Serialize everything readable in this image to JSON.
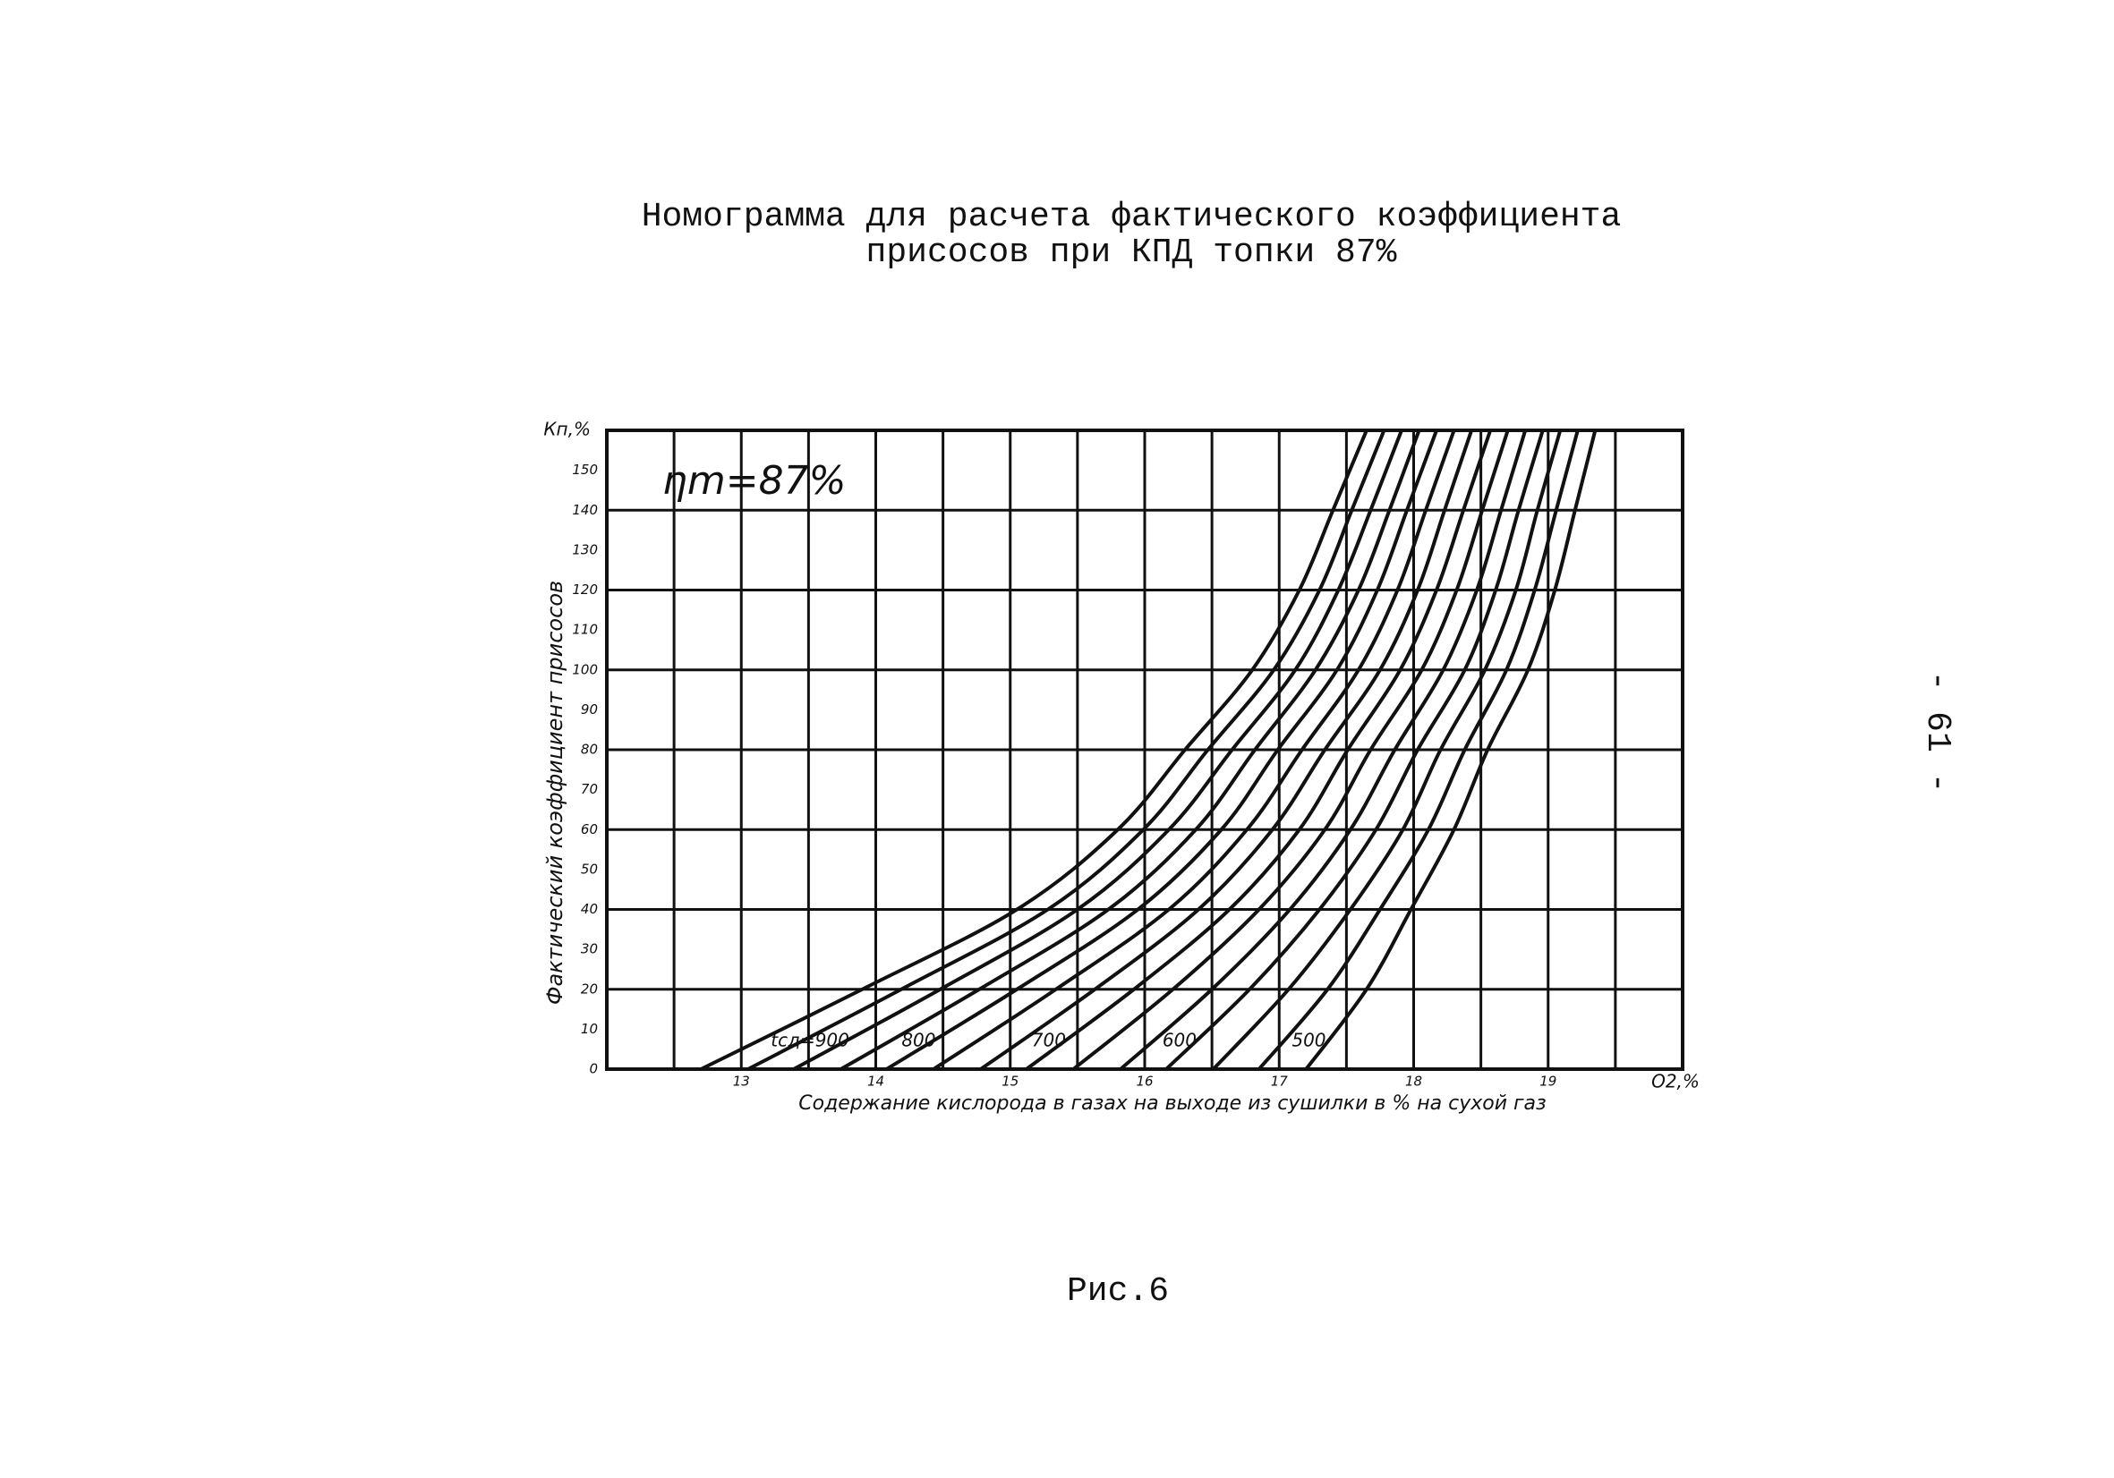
{
  "page": {
    "caption": "Рис.6",
    "page_number": "- 61 -"
  },
  "chart_data": {
    "type": "line",
    "title": [
      "Номограмма для расчета фактического коэффициента",
      "присосов при КПД топки 87%"
    ],
    "annotation": "ηm=87%",
    "x_label": "Содержание кислорода в газах на выходе из сушилки в % на сухой газ",
    "y_label": "Фактический коэффициент присосов",
    "x_unit_label": "O2,%",
    "y_unit_label": "Кп,%",
    "xlim": [
      12,
      20
    ],
    "xticks": [
      13,
      14,
      15,
      16,
      17,
      18,
      19
    ],
    "xgrid": [
      12.5,
      13,
      13.5,
      14,
      14.5,
      15,
      15.5,
      16,
      16.5,
      17,
      17.5,
      18,
      18.5,
      19,
      19.5
    ],
    "ylim": [
      0,
      160
    ],
    "yticks": [
      0,
      10,
      20,
      30,
      40,
      50,
      60,
      70,
      80,
      90,
      100,
      110,
      120,
      130,
      140,
      150
    ],
    "ygrid": [
      20,
      40,
      60,
      80,
      100,
      120,
      140
    ],
    "grid": true,
    "color": "#111111",
    "y": [
      0,
      20,
      40,
      60,
      80,
      100,
      120,
      140,
      160
    ],
    "series": [
      {
        "name": "tсд=900",
        "x": [
          12.7,
          13.9,
          15.05,
          15.8,
          16.3,
          16.8,
          17.15,
          17.4,
          17.65
        ]
      },
      {
        "x": [
          13.05,
          14.19,
          15.28,
          15.99,
          16.47,
          16.96,
          17.3,
          17.54,
          17.78
        ]
      },
      {
        "x": [
          13.39,
          14.48,
          15.5,
          16.18,
          16.65,
          17.12,
          17.44,
          17.68,
          17.91
        ]
      },
      {
        "name": "800",
        "x": [
          13.74,
          14.77,
          15.73,
          16.38,
          16.82,
          17.27,
          17.59,
          17.82,
          18.04
        ]
      },
      {
        "x": [
          14.08,
          15.05,
          15.95,
          16.57,
          16.99,
          17.43,
          17.73,
          17.95,
          18.17
        ]
      },
      {
        "x": [
          14.43,
          15.34,
          16.18,
          16.76,
          17.17,
          17.59,
          17.88,
          18.09,
          18.3
        ]
      },
      {
        "name": "700",
        "x": [
          14.78,
          15.63,
          16.4,
          16.95,
          17.34,
          17.75,
          18.03,
          18.23,
          18.43
        ]
      },
      {
        "x": [
          15.12,
          15.92,
          16.63,
          17.15,
          17.51,
          17.9,
          18.17,
          18.37,
          18.57
        ]
      },
      {
        "x": [
          15.47,
          16.21,
          16.85,
          17.34,
          17.68,
          18.06,
          18.32,
          18.51,
          18.7
        ]
      },
      {
        "name": "600",
        "x": [
          15.82,
          16.5,
          17.08,
          17.53,
          17.86,
          18.22,
          18.47,
          18.65,
          18.83
        ]
      },
      {
        "x": [
          16.16,
          16.78,
          17.3,
          17.72,
          18.03,
          18.38,
          18.61,
          18.78,
          18.96
        ]
      },
      {
        "x": [
          16.51,
          17.07,
          17.53,
          17.92,
          18.2,
          18.53,
          18.76,
          18.92,
          19.09
        ]
      },
      {
        "name": "500",
        "x": [
          16.85,
          17.36,
          17.75,
          18.11,
          18.38,
          18.69,
          18.9,
          19.06,
          19.22
        ]
      },
      {
        "x": [
          17.2,
          17.65,
          17.98,
          18.3,
          18.55,
          18.85,
          19.05,
          19.2,
          19.35
        ]
      }
    ]
  }
}
